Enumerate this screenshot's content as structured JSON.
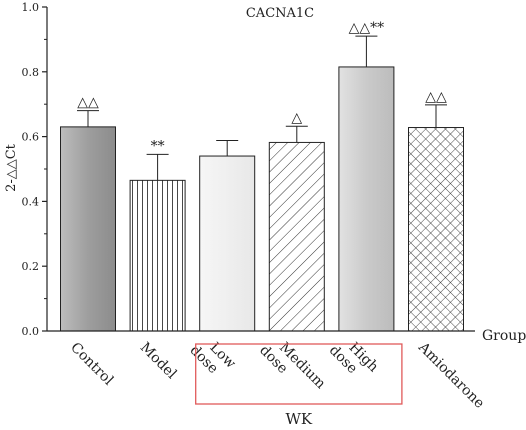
{
  "chart_data": {
    "type": "bar",
    "title": "CACNA1C",
    "ylabel": "2-△△Ct",
    "xlabel": "Group",
    "ylim": [
      0,
      1.0
    ],
    "yticks": [
      0.0,
      0.2,
      0.4,
      0.6,
      0.8,
      1.0
    ],
    "ytick_labels": [
      "0.0",
      "0.2",
      "0.4",
      "0.6",
      "0.8",
      "1.0"
    ],
    "grid": false,
    "categories": [
      {
        "id": "control",
        "lines": [
          "Control"
        ]
      },
      {
        "id": "model",
        "lines": [
          "Model"
        ]
      },
      {
        "id": "low-dose",
        "lines": [
          "Low",
          "dose"
        ]
      },
      {
        "id": "medium-dose",
        "lines": [
          "Medium",
          "dose"
        ]
      },
      {
        "id": "high-dose",
        "lines": [
          "High",
          "dose"
        ]
      },
      {
        "id": "amiodarone",
        "lines": [
          "Amiodarone"
        ]
      }
    ],
    "values": [
      0.63,
      0.465,
      0.54,
      0.582,
      0.815,
      0.628
    ],
    "errors": [
      0.05,
      0.08,
      0.048,
      0.05,
      0.095,
      0.07
    ],
    "annotations": [
      "△△",
      "**",
      "",
      "△",
      "△△**",
      "△△"
    ],
    "fills": [
      "gray-gradient",
      "vertical-lines",
      "light-gray",
      "diagonal-lines",
      "gray-gradient-light",
      "crosshatch"
    ],
    "group_box": {
      "label": "WK",
      "categories": [
        "low-dose",
        "medium-dose",
        "high-dose"
      ],
      "color": "#e05a5a"
    },
    "colors": {
      "control": "#9a9a9a",
      "high": "#c8c8c8",
      "low": "#eeeeee",
      "frame": "#222222"
    }
  }
}
